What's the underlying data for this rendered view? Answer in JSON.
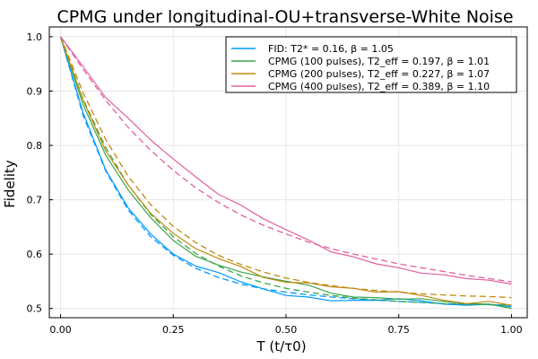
{
  "chart_data": {
    "type": "line",
    "title": "CPMG under longitudinal-OU+transverse-White Noise",
    "xlabel": "T (t/τ0)",
    "ylabel": "Fidelity",
    "xlim": [
      -0.025,
      1.035
    ],
    "ylim": [
      0.483,
      1.018
    ],
    "xticks": [
      0.0,
      0.25,
      0.5,
      0.75,
      1.0
    ],
    "xtick_labels": [
      "0.00",
      "0.25",
      "0.50",
      "0.75",
      "1.00"
    ],
    "yticks": [
      0.5,
      0.6,
      0.7,
      0.8,
      0.9,
      1.0
    ],
    "ytick_labels": [
      "0.5",
      "0.6",
      "0.7",
      "0.8",
      "0.9",
      "1.0"
    ],
    "grid": true,
    "legend_position": "top-right",
    "series": [
      {
        "name": "FID: T2* = 0.16, β = 1.05",
        "color": "#009AFA",
        "x": [
          0,
          0.05,
          0.1,
          0.15,
          0.2,
          0.25,
          0.3,
          0.35,
          0.4,
          0.45,
          0.5,
          0.55,
          0.6,
          0.65,
          0.7,
          0.75,
          0.8,
          0.85,
          0.9,
          0.95,
          1.0
        ],
        "y": [
          1.0,
          0.86,
          0.755,
          0.685,
          0.637,
          0.6,
          0.578,
          0.566,
          0.549,
          0.536,
          0.524,
          0.521,
          0.514,
          0.515,
          0.515,
          0.518,
          0.514,
          0.508,
          0.506,
          0.508,
          0.503
        ],
        "fit_y": [
          1.0,
          0.855,
          0.753,
          0.681,
          0.632,
          0.598,
          0.574,
          0.557,
          0.545,
          0.536,
          0.53,
          0.525,
          0.521,
          0.518,
          0.515,
          0.513,
          0.511,
          0.509,
          0.508,
          0.507,
          0.506
        ]
      },
      {
        "name": "CPMG (100 pulses), T2_eff = 0.197, β = 1.01",
        "color": "#3DA44E",
        "x": [
          0,
          0.05,
          0.1,
          0.15,
          0.2,
          0.25,
          0.3,
          0.35,
          0.4,
          0.45,
          0.5,
          0.55,
          0.6,
          0.65,
          0.7,
          0.75,
          0.8,
          0.85,
          0.9,
          0.95,
          1.0
        ],
        "y": [
          1.0,
          0.875,
          0.782,
          0.718,
          0.667,
          0.625,
          0.596,
          0.58,
          0.567,
          0.558,
          0.55,
          0.543,
          0.528,
          0.521,
          0.52,
          0.517,
          0.518,
          0.513,
          0.509,
          0.508,
          0.5
        ],
        "fit_y": [
          1.0,
          0.885,
          0.796,
          0.727,
          0.673,
          0.632,
          0.601,
          0.578,
          0.56,
          0.547,
          0.537,
          0.53,
          0.524,
          0.519,
          0.516,
          0.513,
          0.511,
          0.509,
          0.508,
          0.507,
          0.506
        ]
      },
      {
        "name": "CPMG (200 pulses), T2_eff = 0.227, β = 1.07",
        "color": "#C2890F",
        "x": [
          0,
          0.05,
          0.1,
          0.15,
          0.2,
          0.25,
          0.3,
          0.35,
          0.4,
          0.45,
          0.5,
          0.55,
          0.6,
          0.65,
          0.7,
          0.75,
          0.8,
          0.85,
          0.9,
          0.95,
          1.0
        ],
        "y": [
          1.0,
          0.883,
          0.79,
          0.727,
          0.675,
          0.638,
          0.61,
          0.592,
          0.577,
          0.557,
          0.548,
          0.547,
          0.54,
          0.537,
          0.53,
          0.531,
          0.524,
          0.515,
          0.509,
          0.513,
          0.506
        ],
        "fit_y": [
          1.0,
          0.897,
          0.811,
          0.743,
          0.691,
          0.651,
          0.621,
          0.598,
          0.581,
          0.567,
          0.556,
          0.548,
          0.542,
          0.537,
          0.533,
          0.53,
          0.527,
          0.525,
          0.523,
          0.522,
          0.52
        ]
      },
      {
        "name": "CPMG (400 pulses), T2_eff = 0.389, β = 1.10",
        "color": "#E0609F",
        "x": [
          0,
          0.05,
          0.1,
          0.15,
          0.2,
          0.25,
          0.3,
          0.35,
          0.4,
          0.45,
          0.5,
          0.55,
          0.6,
          0.65,
          0.7,
          0.75,
          0.8,
          0.85,
          0.9,
          0.95,
          1.0
        ],
        "y": [
          1.0,
          0.945,
          0.888,
          0.85,
          0.81,
          0.775,
          0.742,
          0.71,
          0.69,
          0.665,
          0.645,
          0.626,
          0.604,
          0.595,
          0.582,
          0.575,
          0.565,
          0.562,
          0.555,
          0.552,
          0.545
        ],
        "fit_y": [
          1.0,
          0.94,
          0.883,
          0.833,
          0.791,
          0.754,
          0.722,
          0.695,
          0.672,
          0.653,
          0.637,
          0.622,
          0.61,
          0.6,
          0.591,
          0.582,
          0.575,
          0.568,
          0.561,
          0.555,
          0.549
        ]
      }
    ]
  }
}
